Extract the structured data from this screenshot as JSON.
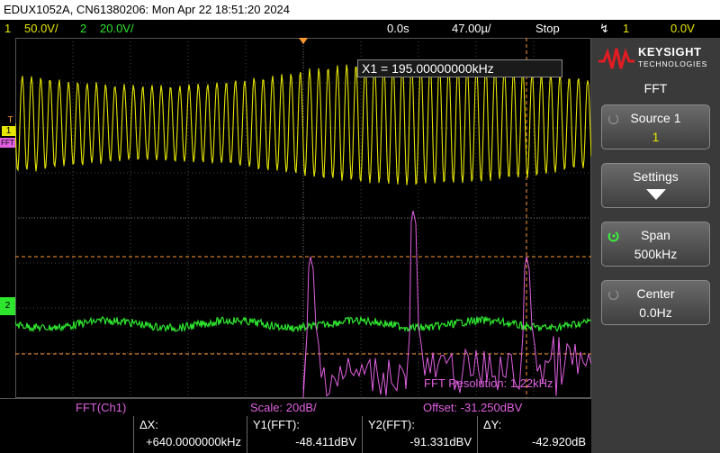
{
  "title": "EDUX1052A, CN61380206: Mon Apr 22 18:51:20 2024",
  "status": {
    "ch1_num": "1",
    "ch1_scale": "50.0V/",
    "ch2_num": "2",
    "ch2_scale": "20.0V/",
    "time_pos": "0.0s",
    "time_scale": "47.00µ/",
    "run_state": "Stop",
    "trig_source": "1",
    "trig_level": "0.0V"
  },
  "colors": {
    "ch1": "#e6e600",
    "ch2": "#2ee62e",
    "math": "#e060e0",
    "cursor": "#ff9933",
    "accent": "#e31b23"
  },
  "markers": {
    "trigger": "T",
    "ch1": "1",
    "math": "FFT",
    "ch2": "2"
  },
  "cursor_readout": "X1 = 195.00000000kHz",
  "fft_resolution": "FFT Resolution: 1.22kHz",
  "side": {
    "brand": "KEYSIGHT",
    "brand_sub": "TECHNOLOGIES",
    "menu_title": "FFT",
    "keys": [
      {
        "label": "Source 1",
        "value": "1",
        "knob": "inactive"
      },
      {
        "label": "Settings",
        "value": "",
        "icon": "arrow-down-icon"
      },
      {
        "label": "Span",
        "value": "500kHz",
        "knob": "active"
      },
      {
        "label": "Center",
        "value": "0.0Hz",
        "knob": "inactive"
      }
    ]
  },
  "fftbar": {
    "source": "FFT(Ch1)",
    "scale": "Scale: 20dB/",
    "offset": "Offset: -31.250dBV"
  },
  "meas": {
    "dx_label": "ΔX:",
    "dx_value": "+640.0000000kHz",
    "y1_label": "Y1(FFT):",
    "y1_value": "-48.411dBV",
    "y2_label": "Y2(FFT):",
    "y2_value": "-91.331dBV",
    "dy_label": "ΔY:",
    "dy_value": "-42.920dB"
  }
}
